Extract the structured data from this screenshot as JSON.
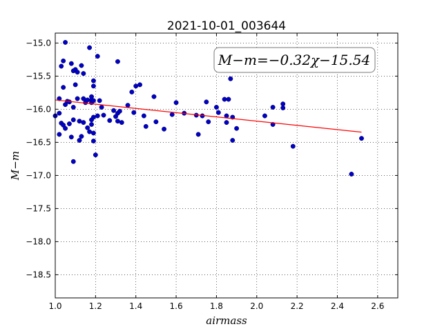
{
  "chart_data": {
    "type": "scatter",
    "title": "2021-10-01_003644",
    "xlabel": "airmass",
    "ylabel": "M−m",
    "annotation": "M−m=−0.32χ−15.54",
    "xlim": [
      1.0,
      2.7
    ],
    "ylim": [
      -18.85,
      -14.85
    ],
    "y_inverted": true,
    "grid": true,
    "x_ticks": [
      1.0,
      1.2,
      1.4,
      1.6,
      1.8,
      2.0,
      2.2,
      2.4,
      2.6
    ],
    "x_tick_labels": [
      "1.0",
      "1.2",
      "1.4",
      "1.6",
      "1.8",
      "2.0",
      "2.2",
      "2.4",
      "2.6"
    ],
    "y_ticks": [
      -15.0,
      -15.5,
      -16.0,
      -16.5,
      -17.0,
      -17.5,
      -18.0,
      -18.5
    ],
    "y_tick_labels": [
      "−15.0",
      "−15.5",
      "−16.0",
      "−16.5",
      "−17.0",
      "−17.5",
      "−18.0",
      "−18.5"
    ],
    "fit": {
      "slope": -0.32,
      "intercept": -15.54,
      "x_range": [
        1.0,
        2.52
      ],
      "color": "#ff0000"
    },
    "point_color": "#0000cc",
    "points": [
      [
        1.0,
        -16.1
      ],
      [
        1.02,
        -16.38
      ],
      [
        1.02,
        -15.84
      ],
      [
        1.02,
        -16.06
      ],
      [
        1.03,
        -15.35
      ],
      [
        1.03,
        -16.21
      ],
      [
        1.04,
        -15.27
      ],
      [
        1.04,
        -15.67
      ],
      [
        1.04,
        -16.24
      ],
      [
        1.05,
        -14.99
      ],
      [
        1.05,
        -15.93
      ],
      [
        1.05,
        -16.29
      ],
      [
        1.06,
        -15.88
      ],
      [
        1.07,
        -15.89
      ],
      [
        1.07,
        -16.22
      ],
      [
        1.08,
        -16.42
      ],
      [
        1.08,
        -15.31
      ],
      [
        1.09,
        -15.97
      ],
      [
        1.09,
        -16.16
      ],
      [
        1.09,
        -16.79
      ],
      [
        1.09,
        -15.42
      ],
      [
        1.1,
        -15.63
      ],
      [
        1.1,
        -15.4
      ],
      [
        1.11,
        -15.44
      ],
      [
        1.11,
        -15.84
      ],
      [
        1.12,
        -16.47
      ],
      [
        1.12,
        -16.18
      ],
      [
        1.13,
        -15.34
      ],
      [
        1.13,
        -16.41
      ],
      [
        1.14,
        -15.46
      ],
      [
        1.14,
        -16.2
      ],
      [
        1.14,
        -15.84
      ],
      [
        1.15,
        -15.9
      ],
      [
        1.16,
        -16.28
      ],
      [
        1.16,
        -15.86
      ],
      [
        1.17,
        -15.07
      ],
      [
        1.17,
        -16.34
      ],
      [
        1.18,
        -15.81
      ],
      [
        1.18,
        -16.16
      ],
      [
        1.18,
        -16.23
      ],
      [
        1.18,
        -15.86
      ],
      [
        1.18,
        -15.9
      ],
      [
        1.19,
        -15.57
      ],
      [
        1.19,
        -15.65
      ],
      [
        1.19,
        -16.12
      ],
      [
        1.19,
        -15.87
      ],
      [
        1.19,
        -16.36
      ],
      [
        1.19,
        -16.48
      ],
      [
        1.2,
        -16.69
      ],
      [
        1.21,
        -15.2
      ],
      [
        1.21,
        -16.1
      ],
      [
        1.22,
        -15.87
      ],
      [
        1.23,
        -15.97
      ],
      [
        1.24,
        -16.09
      ],
      [
        1.27,
        -16.17
      ],
      [
        1.29,
        -16.02
      ],
      [
        1.3,
        -16.11
      ],
      [
        1.31,
        -15.28
      ],
      [
        1.31,
        -16.06
      ],
      [
        1.31,
        -16.18
      ],
      [
        1.32,
        -16.03
      ],
      [
        1.33,
        -16.2
      ],
      [
        1.36,
        -15.94
      ],
      [
        1.38,
        -15.74
      ],
      [
        1.39,
        -16.05
      ],
      [
        1.4,
        -15.65
      ],
      [
        1.42,
        -15.63
      ],
      [
        1.44,
        -16.1
      ],
      [
        1.45,
        -16.26
      ],
      [
        1.49,
        -15.81
      ],
      [
        1.5,
        -16.19
      ],
      [
        1.54,
        -16.3
      ],
      [
        1.58,
        -16.08
      ],
      [
        1.6,
        -15.9
      ],
      [
        1.64,
        -16.06
      ],
      [
        1.7,
        -16.09
      ],
      [
        1.71,
        -16.38
      ],
      [
        1.73,
        -16.1
      ],
      [
        1.75,
        -15.89
      ],
      [
        1.76,
        -16.19
      ],
      [
        1.8,
        -15.97
      ],
      [
        1.81,
        -16.05
      ],
      [
        1.84,
        -15.85
      ],
      [
        1.85,
        -16.2
      ],
      [
        1.85,
        -16.1
      ],
      [
        1.86,
        -15.85
      ],
      [
        1.87,
        -15.54
      ],
      [
        1.88,
        -16.12
      ],
      [
        1.88,
        -16.47
      ],
      [
        1.9,
        -16.29
      ],
      [
        2.04,
        -16.1
      ],
      [
        2.08,
        -15.97
      ],
      [
        2.08,
        -16.23
      ],
      [
        2.13,
        -15.98
      ],
      [
        2.13,
        -15.92
      ],
      [
        2.18,
        -16.56
      ],
      [
        2.47,
        -16.98
      ],
      [
        2.52,
        -16.44
      ]
    ]
  }
}
